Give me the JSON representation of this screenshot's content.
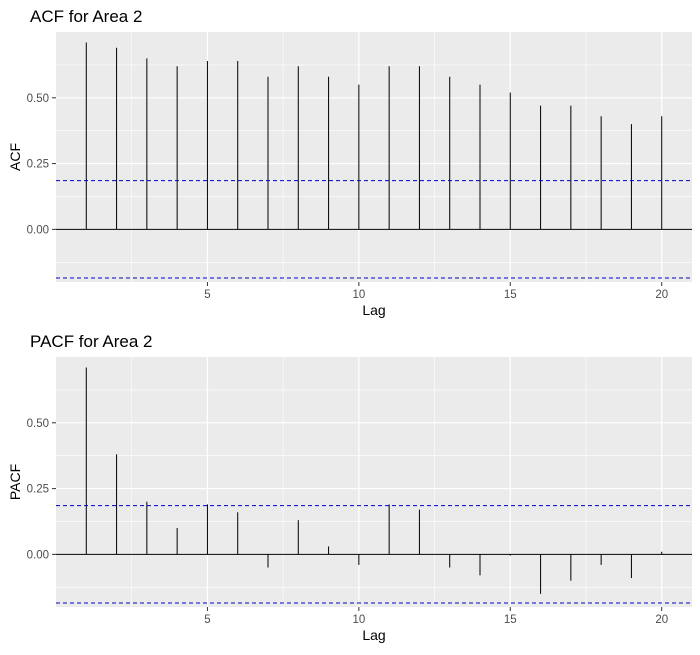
{
  "chart_data": [
    {
      "type": "bar",
      "subtype": "correlogram",
      "title": "ACF for Area 2",
      "xlabel": "Lag",
      "ylabel": "ACF",
      "x": [
        1,
        2,
        3,
        4,
        5,
        6,
        7,
        8,
        9,
        10,
        11,
        12,
        13,
        14,
        15,
        16,
        17,
        18,
        19,
        20
      ],
      "values": [
        0.71,
        0.69,
        0.65,
        0.62,
        0.64,
        0.64,
        0.58,
        0.62,
        0.58,
        0.55,
        0.62,
        0.62,
        0.58,
        0.55,
        0.52,
        0.47,
        0.47,
        0.43,
        0.4,
        0.43
      ],
      "confidence_bound": 0.185,
      "confidence_color": "#0000cc",
      "xlim": [
        0,
        21
      ],
      "ylim": [
        -0.2,
        0.75
      ],
      "xticks": [
        5,
        10,
        15,
        20
      ],
      "xtick_labels": [
        "5",
        "10",
        "15",
        "20"
      ],
      "yticks": [
        0.0,
        0.25,
        0.5
      ],
      "ytick_labels": [
        "0.00",
        "0.25",
        "0.50"
      ],
      "grid": true
    },
    {
      "type": "bar",
      "subtype": "correlogram",
      "title": "PACF for Area 2",
      "xlabel": "Lag",
      "ylabel": "PACF",
      "x": [
        1,
        2,
        3,
        4,
        5,
        6,
        7,
        8,
        9,
        10,
        11,
        12,
        13,
        14,
        15,
        16,
        17,
        18,
        19,
        20
      ],
      "values": [
        0.71,
        0.38,
        0.2,
        0.1,
        0.19,
        0.16,
        -0.05,
        0.13,
        0.03,
        -0.04,
        0.19,
        0.17,
        -0.05,
        -0.08,
        -0.005,
        -0.15,
        -0.1,
        -0.04,
        -0.09,
        0.01
      ],
      "confidence_bound": 0.185,
      "confidence_color": "#0000cc",
      "xlim": [
        0,
        21
      ],
      "ylim": [
        -0.2,
        0.75
      ],
      "xticks": [
        5,
        10,
        15,
        20
      ],
      "xtick_labels": [
        "5",
        "10",
        "15",
        "20"
      ],
      "yticks": [
        0.0,
        0.25,
        0.5
      ],
      "ytick_labels": [
        "0.00",
        "0.25",
        "0.50"
      ],
      "grid": true
    }
  ]
}
